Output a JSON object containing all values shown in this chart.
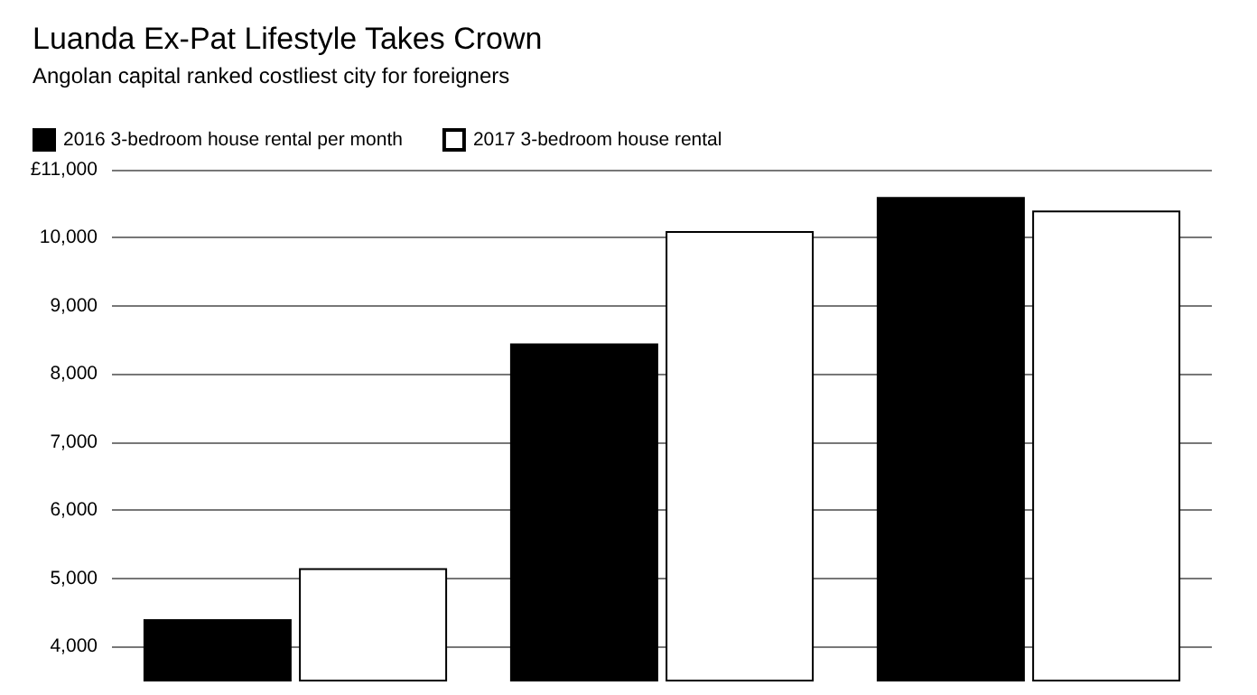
{
  "chart_data": {
    "type": "bar",
    "title": "Luanda Ex-Pat Lifestyle Takes Crown",
    "subtitle": "Angolan capital ranked costliest city for foreigners",
    "categories": [
      null,
      null,
      null
    ],
    "series": [
      {
        "name": "2016 3-bedroom house rental per month",
        "color": "#000000",
        "values": [
          4400,
          8450,
          10600
        ]
      },
      {
        "name": "2017 3-bedroom house rental",
        "color": "#ffffff",
        "values": [
          5150,
          10100,
          10400
        ]
      }
    ],
    "ylim": [
      3500,
      11000
    ],
    "yticks": [
      {
        "value": 4000,
        "label": "4,000"
      },
      {
        "value": 5000,
        "label": "5,000"
      },
      {
        "value": 6000,
        "label": "6,000"
      },
      {
        "value": 7000,
        "label": "7,000"
      },
      {
        "value": 8000,
        "label": "8,000"
      },
      {
        "value": 9000,
        "label": "9,000"
      },
      {
        "value": 10000,
        "label": "10,000"
      },
      {
        "value": 11000,
        "label": "£11,000"
      }
    ],
    "grid": "y",
    "legend": "top left"
  }
}
